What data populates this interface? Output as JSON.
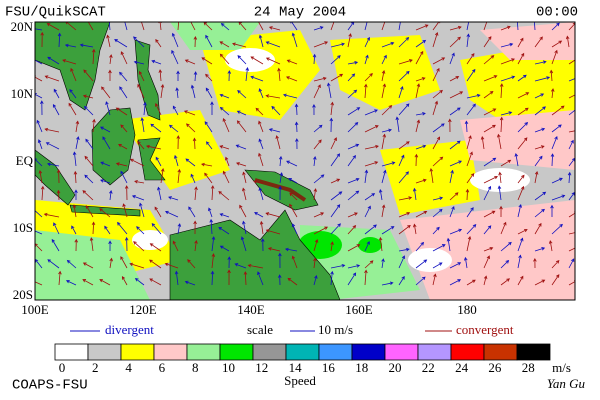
{
  "header": {
    "left": "FSU/QuikSCAT",
    "center": "24 May 2004",
    "right": "00:00"
  },
  "map": {
    "lat_labels": [
      "20N",
      "10N",
      "EQ",
      "10S",
      "20S"
    ],
    "lon_labels": [
      "100E",
      "120E",
      "140E",
      "160E",
      "180"
    ]
  },
  "legend": {
    "divergent": "divergent",
    "scale": "scale",
    "scale_value": "10 m/s",
    "convergent": "convergent",
    "divergent_color": "#1010c0",
    "convergent_color": "#a01010"
  },
  "colorbar": {
    "title": "Speed",
    "labels": [
      "0",
      "2",
      "4",
      "6",
      "8",
      "10",
      "12",
      "14",
      "16",
      "18",
      "20",
      "22",
      "24",
      "26",
      "28",
      "m/s"
    ],
    "colors": [
      "#ffffff",
      "#c8c8c8",
      "#ffff00",
      "#ffc8c8",
      "#96f096",
      "#00e600",
      "#969696",
      "#00b4b4",
      "#3c96ff",
      "#0000c8",
      "#ff64ff",
      "#b496ff",
      "#ff0000",
      "#c83200",
      "#000000"
    ]
  },
  "footer": {
    "left": "COAPS-FSU",
    "right": "Yan Gu"
  }
}
